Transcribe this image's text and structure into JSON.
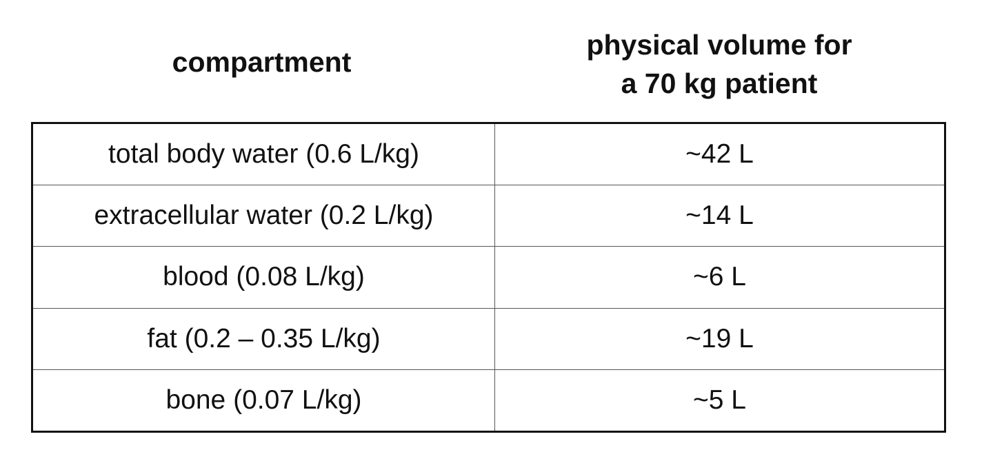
{
  "table": {
    "header": {
      "compartment": "compartment",
      "volume": [
        "physical volume for",
        "a 70 kg patient"
      ]
    },
    "rows": [
      [
        "total body water (0.6 L/kg)",
        "~42 L"
      ],
      [
        "extracellular water (0.2 L/kg)",
        "~14 L"
      ],
      [
        "blood (0.08 L/kg)",
        "~6 L"
      ],
      [
        "fat (0.2 – 0.35 L/kg)",
        "~19 L"
      ],
      [
        "bone (0.07 L/kg)",
        "~5 L"
      ]
    ]
  }
}
